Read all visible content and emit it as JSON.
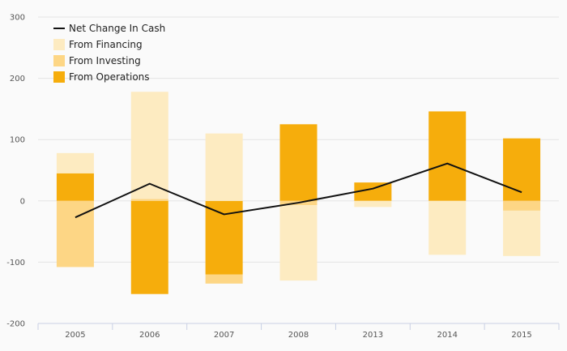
{
  "chart_data": {
    "type": "bar",
    "stacked": true,
    "title": "",
    "xlabel": "",
    "ylabel": "",
    "categories": [
      "2005",
      "2006",
      "2007",
      "2008",
      "2013",
      "2014",
      "2015"
    ],
    "ylim": [
      -200,
      300
    ],
    "yticks": [
      -200,
      -100,
      0,
      100,
      200,
      300
    ],
    "grid": true,
    "legend_position": "top-left",
    "series": [
      {
        "name": "From Operations",
        "type": "bar",
        "color": "#f6ad0c",
        "values": [
          45,
          -152,
          -120,
          125,
          30,
          146,
          102
        ]
      },
      {
        "name": "From Investing",
        "type": "bar",
        "color": "#fdd685",
        "values": [
          -108,
          3,
          -15,
          -7,
          0,
          0,
          -16
        ]
      },
      {
        "name": "From Financing",
        "type": "bar",
        "color": "#fdebc1",
        "values": [
          33,
          175,
          110,
          -123,
          -10,
          -88,
          -74
        ]
      },
      {
        "name": "Net Change In Cash",
        "type": "line",
        "color": "#111111",
        "values": [
          -27,
          28,
          -22,
          -3,
          20,
          61,
          14
        ]
      }
    ],
    "legend_order": [
      "Net Change In Cash",
      "From Financing",
      "From Investing",
      "From Operations"
    ]
  }
}
